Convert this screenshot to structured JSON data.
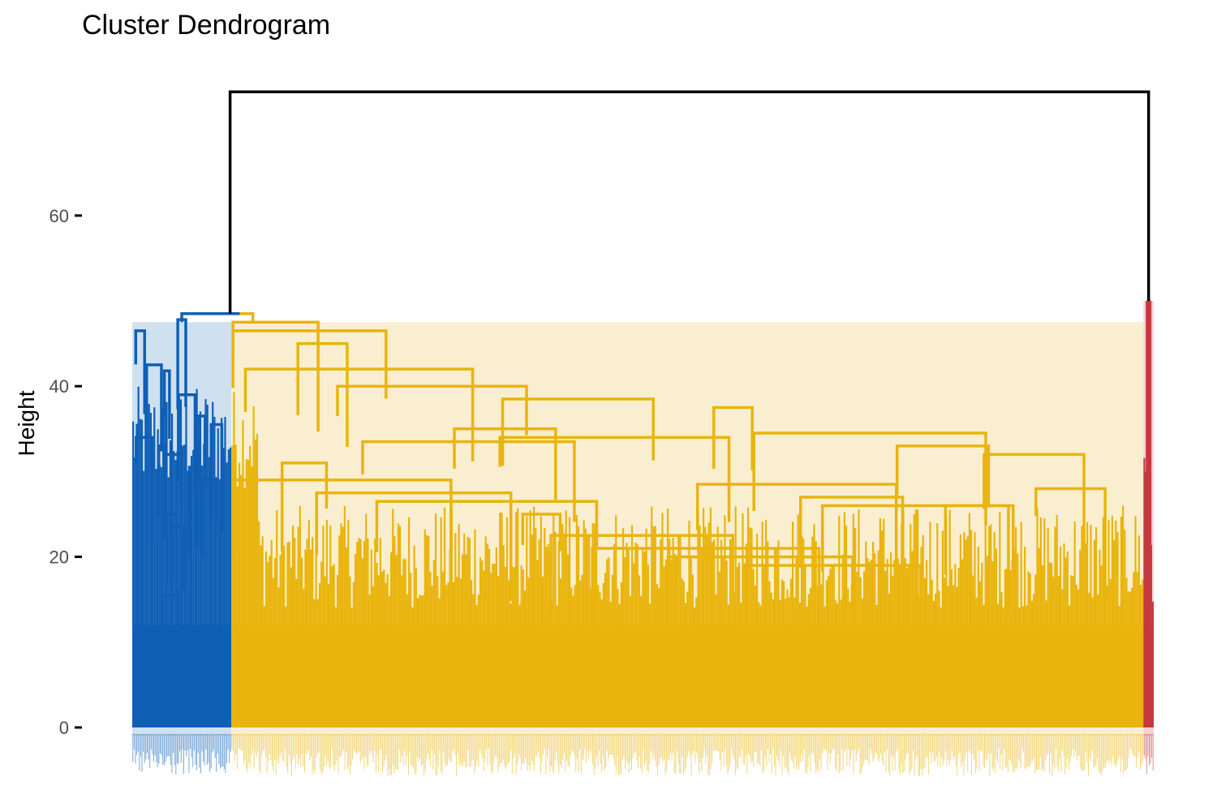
{
  "chart_data": {
    "type": "dendrogram",
    "title": "Cluster Dendrogram",
    "ylabel": "Height",
    "xlabel": "",
    "ylim": [
      -5,
      75
    ],
    "y_ticks": [
      0,
      20,
      40,
      60
    ],
    "grid": false,
    "root_height": 74.5,
    "k_clusters": 3,
    "cut_height": 47.5,
    "clusters": [
      {
        "name": "blue",
        "color": "#0F5FB5",
        "fill": "#CFE0EF",
        "leaf_fraction": 0.097,
        "merge_height": 47.5
      },
      {
        "name": "yellow",
        "color": "#E9B40C",
        "fill": "#F9EFD0",
        "leaf_fraction": 0.893,
        "merge_height": 47.5
      },
      {
        "name": "red",
        "color": "#C5393F",
        "fill": "#F3D3D4",
        "leaf_fraction": 0.01,
        "merge_height": 50.0
      }
    ],
    "main_merge": {
      "left_cluster": "blue",
      "right_cluster": "yellow",
      "height": 48.5
    },
    "root_merge": {
      "color": "#000000",
      "height": 74.5
    },
    "sample_tree": {
      "blue": [
        {
          "x": 0.5,
          "y": 47.8
        },
        {
          "x": 0.08,
          "y": 46.5
        },
        {
          "x": 0.22,
          "y": 42.5
        },
        {
          "x": 0.35,
          "y": 41.8
        },
        {
          "x": 0.55,
          "y": 39.0
        },
        {
          "x": 0.7,
          "y": 36.5
        },
        {
          "x": 0.85,
          "y": 35.5
        },
        {
          "x": 0.12,
          "y": 34.0
        },
        {
          "x": 0.3,
          "y": 33.0
        },
        {
          "x": 0.42,
          "y": 32.0
        },
        {
          "x": 0.62,
          "y": 30.5
        },
        {
          "x": 0.78,
          "y": 29.0
        },
        {
          "x": 0.4,
          "y": 25.0
        },
        {
          "x": 0.46,
          "y": 23.5
        },
        {
          "x": 0.38,
          "y": 15.5
        }
      ],
      "yellow": [
        {
          "x": 0.02,
          "y": 47.5
        },
        {
          "x": 0.08,
          "y": 46.5
        },
        {
          "x": 0.1,
          "y": 45.0
        },
        {
          "x": 0.14,
          "y": 42.0
        },
        {
          "x": 0.22,
          "y": 40.0
        },
        {
          "x": 0.38,
          "y": 38.5
        },
        {
          "x": 0.55,
          "y": 37.5
        },
        {
          "x": 0.3,
          "y": 35.0
        },
        {
          "x": 0.42,
          "y": 34.0
        },
        {
          "x": 0.26,
          "y": 33.5
        },
        {
          "x": 0.7,
          "y": 34.5
        },
        {
          "x": 0.78,
          "y": 33.0
        },
        {
          "x": 0.88,
          "y": 32.0
        },
        {
          "x": 0.08,
          "y": 31.0
        },
        {
          "x": 0.12,
          "y": 29.0
        },
        {
          "x": 0.2,
          "y": 27.5
        },
        {
          "x": 0.28,
          "y": 26.5
        },
        {
          "x": 0.34,
          "y": 25.0
        },
        {
          "x": 0.62,
          "y": 28.5
        },
        {
          "x": 0.68,
          "y": 27.0
        },
        {
          "x": 0.75,
          "y": 26.0
        },
        {
          "x": 0.82,
          "y": 26.0
        },
        {
          "x": 0.92,
          "y": 28.0
        },
        {
          "x": 0.45,
          "y": 22.5
        },
        {
          "x": 0.52,
          "y": 21.0
        },
        {
          "x": 0.58,
          "y": 20.0
        },
        {
          "x": 0.66,
          "y": 19.0
        }
      ],
      "red": [
        {
          "x": 0.5,
          "y": 50.0
        }
      ]
    }
  }
}
